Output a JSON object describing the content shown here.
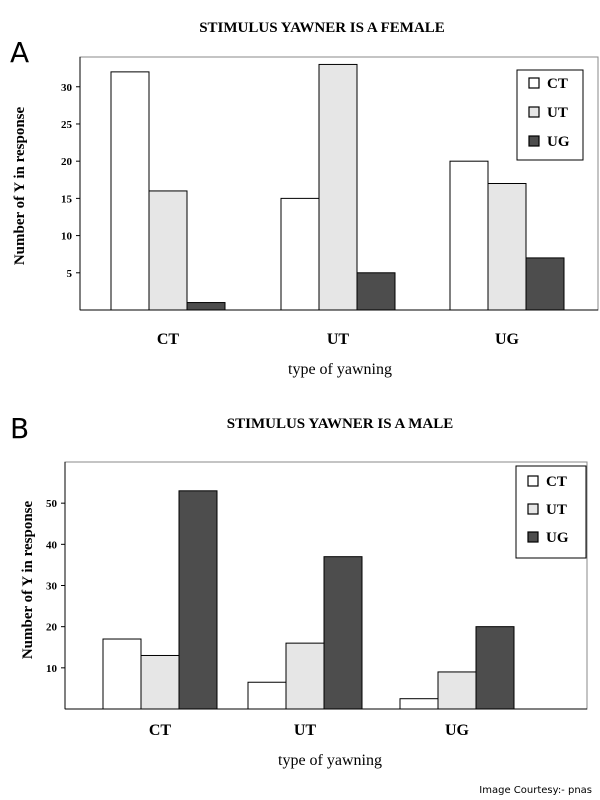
{
  "colors": {
    "CT": "#ffffff",
    "UT": "#e6e6e6",
    "UG": "#4d4d4d",
    "stroke": "#000000"
  },
  "credit": "Image Courtesy:- pnas",
  "chart_data": [
    {
      "panel": "A",
      "type": "bar",
      "title": "STIMULUS YAWNER IS A FEMALE",
      "xlabel": "type of yawning",
      "ylabel": "Number of Y in response",
      "categories": [
        "CT",
        "UT",
        "UG"
      ],
      "series": [
        {
          "name": "CT",
          "values": [
            32,
            15,
            20
          ]
        },
        {
          "name": "UT",
          "values": [
            16,
            33,
            17
          ]
        },
        {
          "name": "UG",
          "values": [
            1,
            5,
            7
          ]
        }
      ],
      "yticks": [
        5,
        10,
        15,
        20,
        25,
        30
      ],
      "ylim": [
        0,
        34
      ],
      "legend": "top-right",
      "grid": false
    },
    {
      "panel": "B",
      "type": "bar",
      "title": "STIMULUS YAWNER IS A MALE",
      "xlabel": "type of yawning",
      "ylabel": "Number of Y in response",
      "categories": [
        "CT",
        "UT",
        "UG"
      ],
      "series": [
        {
          "name": "CT",
          "values": [
            17,
            6.5,
            2.5
          ]
        },
        {
          "name": "UT",
          "values": [
            13,
            16,
            9
          ]
        },
        {
          "name": "UG",
          "values": [
            53,
            37,
            20
          ]
        }
      ],
      "yticks": [
        10,
        20,
        30,
        40,
        50
      ],
      "ylim": [
        0,
        60
      ],
      "legend": "top-right",
      "grid": false
    }
  ]
}
